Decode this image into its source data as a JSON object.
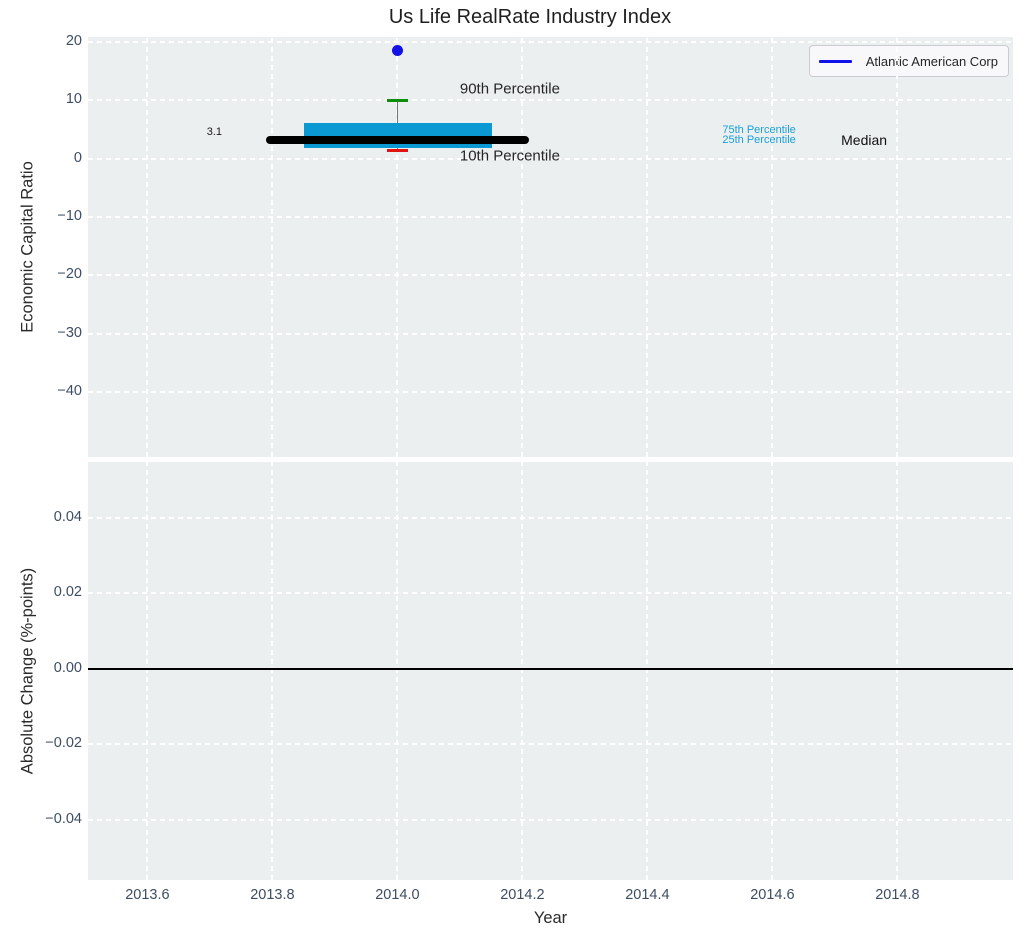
{
  "title": "Us Life RealRate Industry Index",
  "legend": {
    "label": "Atlantic American Corp",
    "line_color": "#1111e8"
  },
  "colors": {
    "plot_background": "#ebeff0",
    "grid": "#ffffff",
    "tick_labels": "#3e4d63",
    "box_fill": "#0a99d3",
    "median_line": "#000000",
    "p90_cap": "#0b8f0b",
    "p10_cap": "#e01212",
    "whisker": "#777777",
    "company_point": "#1111e8",
    "zero_line": "#000000"
  },
  "chart_data": {
    "type": "boxplot+scatter",
    "title": "Us Life RealRate Industry Index",
    "xlabel": "Year",
    "xlim": [
      2013.505,
      2014.985
    ],
    "xticks": [
      2013.6,
      2013.8,
      2014.0,
      2014.2,
      2014.4,
      2014.6,
      2014.8
    ],
    "xtick_labels": [
      "2013.6",
      "2013.8",
      "2014.0",
      "2014.2",
      "2014.4",
      "2014.6",
      "2014.8"
    ],
    "grid": "on",
    "legend_position": "upper right",
    "top": {
      "ylabel": "Economic Capital Ratio",
      "ylim": [
        -51.1,
        20.8
      ],
      "yticks": [
        20,
        10,
        0,
        -10,
        -20,
        -30,
        -40
      ],
      "ytick_labels": [
        "20",
        "10",
        "0",
        "−10",
        "−20",
        "−30",
        "−40"
      ],
      "box": {
        "x_center": 2014.0,
        "box_left": 2013.85,
        "box_right": 2014.152,
        "median_left": 2013.79,
        "median_right": 2014.21,
        "cap_half_width": 0.0165,
        "p10": 1.4,
        "p25": 1.8,
        "median": 3.1,
        "p75": 6.0,
        "p90": 10.0
      },
      "company_point": {
        "name": "Atlantic American Corp",
        "x": 2014.0,
        "y": 18.5
      },
      "annotations": [
        {
          "text": "3.1",
          "x": 2013.695,
          "y": 4.5,
          "color": "#1a1a1a",
          "size": "sm"
        },
        {
          "text": "90th Percentile",
          "x": 2014.1,
          "y": 11.9,
          "color": "#262626",
          "size": "lg"
        },
        {
          "text": "10th Percentile",
          "x": 2014.1,
          "y": 0.4,
          "color": "#262626",
          "size": "lg"
        },
        {
          "text": "75th Percentile",
          "x": 2014.52,
          "y": 4.8,
          "color": "#1ba0d8",
          "size": "sm"
        },
        {
          "text": "25th Percentile",
          "x": 2014.52,
          "y": 3.1,
          "color": "#1ba0d8",
          "size": "sm"
        },
        {
          "text": "Median",
          "x": 2014.71,
          "y": 3.2,
          "color": "#111111",
          "size": "md"
        }
      ]
    },
    "bottom": {
      "ylabel": "Absolute Change (%-points)",
      "ylim": [
        -0.0559,
        0.0547
      ],
      "yticks": [
        0.04,
        0.02,
        0.0,
        -0.02,
        -0.04
      ],
      "ytick_labels": [
        "0.04",
        "0.02",
        "0.00",
        "−0.02",
        "−0.04"
      ],
      "zero_line_y": 0.0
    }
  }
}
